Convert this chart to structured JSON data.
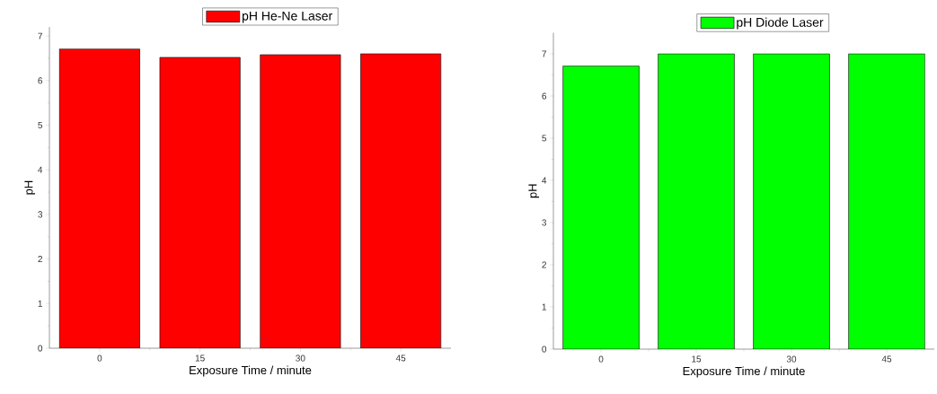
{
  "chart_data": [
    {
      "type": "bar",
      "categories": [
        "0",
        "15",
        "30",
        "45"
      ],
      "xlabel": "Exposure Time / minute",
      "ylabel": "pH",
      "ylim": [
        0,
        7.2
      ],
      "yticks": [
        0,
        1,
        2,
        3,
        4,
        5,
        6,
        7
      ],
      "legend": "top",
      "series": [
        {
          "name": "pH He-Ne Laser",
          "color": "#ff0000",
          "values": [
            6.71,
            6.52,
            6.58,
            6.6
          ]
        }
      ]
    },
    {
      "type": "bar",
      "categories": [
        "0",
        "15",
        "30",
        "45"
      ],
      "xlabel": "Exposure Time / minute",
      "ylabel": "pH",
      "ylim": [
        0,
        7.5
      ],
      "yticks": [
        0,
        1,
        2,
        3,
        4,
        5,
        6,
        7
      ],
      "legend": "top",
      "series": [
        {
          "name": "pH Diode Laser",
          "color": "#00ff00",
          "values": [
            6.71,
            7.0,
            7.0,
            7.0
          ]
        }
      ]
    }
  ]
}
